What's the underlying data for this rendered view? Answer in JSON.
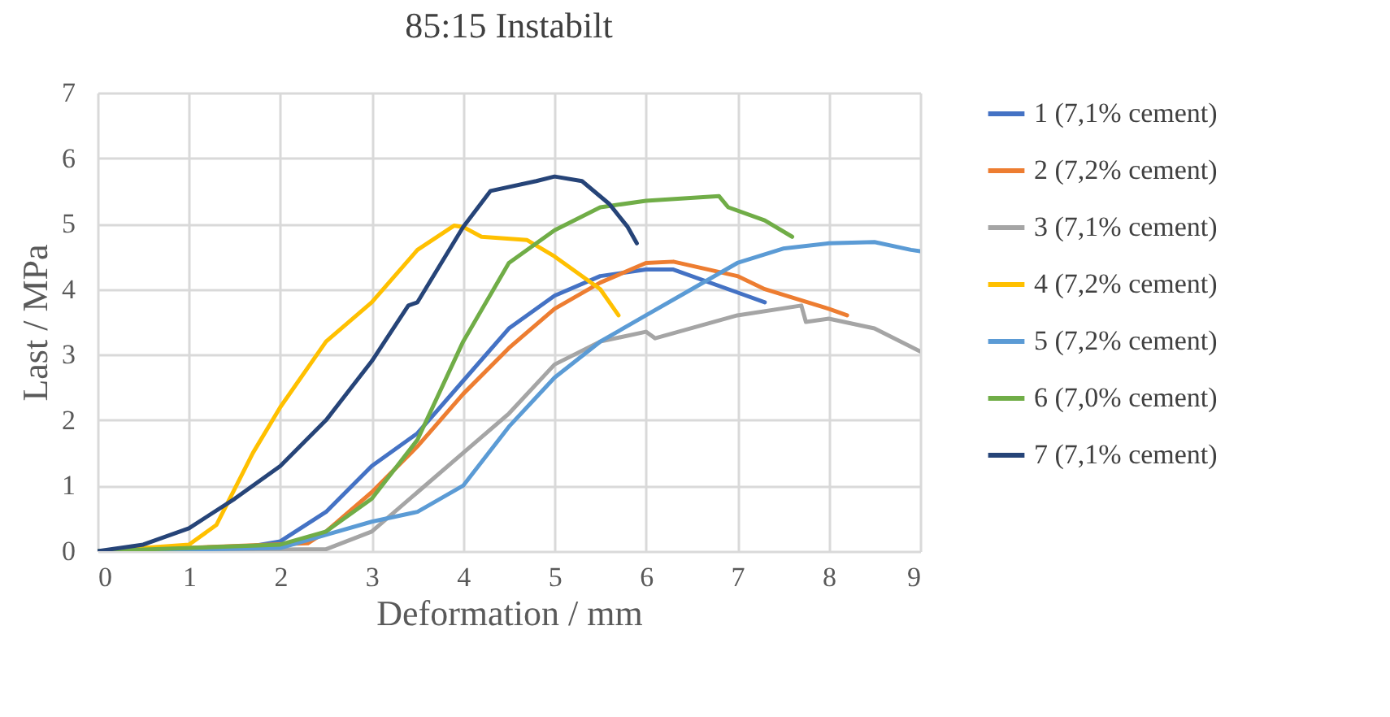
{
  "chart_data": {
    "type": "line",
    "title": "85:15 Instabilt",
    "xlabel": "Deformation / mm",
    "ylabel": "Last / MPa",
    "xlim": [
      0,
      9
    ],
    "xticks": [
      0,
      1,
      2,
      3,
      4,
      5,
      6,
      7,
      8,
      9
    ],
    "ylim": [
      0,
      7
    ],
    "yticks": [
      0,
      1,
      2,
      3,
      4,
      5,
      6,
      7
    ],
    "grid": true,
    "legend": "right",
    "marker": "none",
    "line_style": "solid",
    "series": [
      {
        "name": "1 (7,1% cement)",
        "color": "#4472c4",
        "x": [
          0,
          1.5,
          2,
          2.5,
          3,
          3.5,
          4,
          4.5,
          5,
          5.5,
          6,
          6.3,
          7,
          7.3
        ],
        "values": [
          0,
          0.03,
          0.15,
          0.6,
          1.3,
          1.8,
          2.6,
          3.4,
          3.9,
          4.2,
          4.3,
          4.3,
          3.95,
          3.8
        ]
      },
      {
        "name": "2 (7,2% cement)",
        "color": "#ed7d31",
        "x": [
          0,
          2.3,
          2.5,
          3,
          3.5,
          4,
          4.5,
          5,
          5.5,
          6,
          6.3,
          7,
          7.3,
          8,
          8.2
        ],
        "values": [
          0,
          0.12,
          0.3,
          0.9,
          1.6,
          2.4,
          3.1,
          3.7,
          4.1,
          4.4,
          4.42,
          4.2,
          4.0,
          3.7,
          3.6
        ]
      },
      {
        "name": "3 (7,1% cement)",
        "color": "#a5a5a5",
        "x": [
          0,
          2.5,
          3,
          3.5,
          4,
          4.5,
          5,
          5.5,
          6,
          6.1,
          7,
          7.7,
          7.75,
          8,
          8.5,
          9
        ],
        "values": [
          0,
          0.03,
          0.3,
          0.9,
          1.5,
          2.1,
          2.85,
          3.2,
          3.35,
          3.25,
          3.6,
          3.75,
          3.5,
          3.55,
          3.4,
          3.05
        ]
      },
      {
        "name": "4 (7,2% cement)",
        "color": "#ffc000",
        "x": [
          0,
          1,
          1.3,
          1.7,
          2,
          2.5,
          3,
          3.5,
          3.9,
          4,
          4.2,
          4.7,
          5,
          5.5,
          5.7
        ],
        "values": [
          0,
          0.1,
          0.4,
          1.5,
          2.2,
          3.2,
          3.8,
          4.6,
          4.97,
          4.95,
          4.8,
          4.75,
          4.5,
          4.0,
          3.6
        ]
      },
      {
        "name": "5 (7,2% cement)",
        "color": "#5b9bd5",
        "x": [
          0,
          2,
          2.5,
          3,
          3.5,
          4,
          4.5,
          5,
          5.5,
          6,
          6.5,
          7,
          7.5,
          8,
          8.5,
          8.9,
          9
        ],
        "values": [
          0,
          0.05,
          0.25,
          0.45,
          0.6,
          1.0,
          1.9,
          2.65,
          3.2,
          3.6,
          4.0,
          4.4,
          4.62,
          4.7,
          4.72,
          4.6,
          4.58
        ]
      },
      {
        "name": "6 (7,0% cement)",
        "color": "#70ad47",
        "x": [
          0,
          2,
          2.5,
          3,
          3.5,
          4,
          4.5,
          5,
          5.5,
          6,
          6.8,
          6.9,
          7.3,
          7.6
        ],
        "values": [
          0,
          0.1,
          0.3,
          0.8,
          1.7,
          3.2,
          4.4,
          4.9,
          5.25,
          5.35,
          5.42,
          5.25,
          5.05,
          4.8
        ]
      },
      {
        "name": "7 (7,1% cement)",
        "color": "#264478",
        "x": [
          0,
          0.5,
          1,
          1.5,
          2,
          2.5,
          3,
          3.4,
          3.5,
          4,
          4.3,
          4.8,
          5,
          5.3,
          5.6,
          5.8,
          5.9
        ],
        "values": [
          0,
          0.1,
          0.35,
          0.8,
          1.3,
          2.0,
          2.9,
          3.75,
          3.8,
          4.95,
          5.5,
          5.65,
          5.72,
          5.65,
          5.3,
          4.95,
          4.7
        ]
      }
    ]
  }
}
